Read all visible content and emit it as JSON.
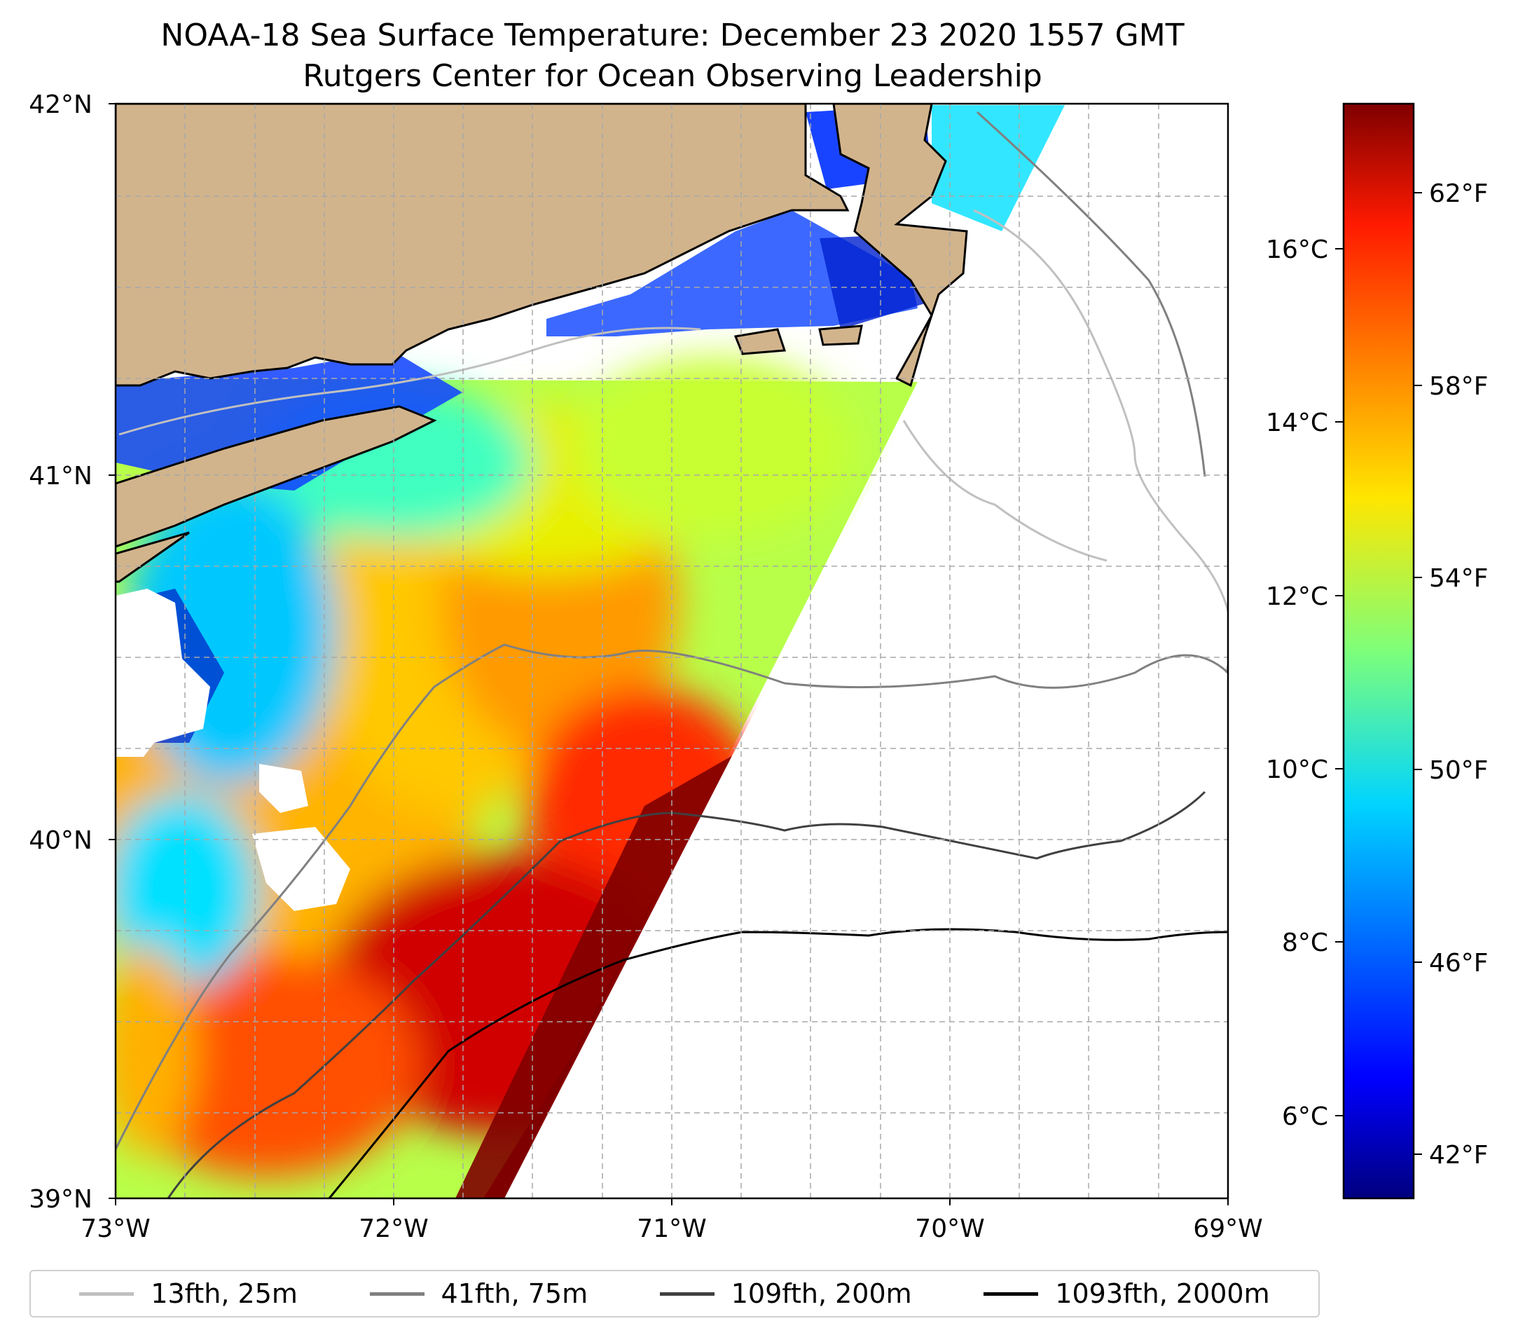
{
  "title": "NOAA-18 Sea Surface Temperature: December 23 2020 1557 GMT",
  "subtitle": "Rutgers Center for Ocean Observing Leadership",
  "map": {
    "lat_range": [
      39,
      42
    ],
    "lon_range": [
      -73,
      -69
    ],
    "lat_ticks": [
      "42°N",
      "41°N",
      "40°N",
      "39°N"
    ],
    "lon_ticks": [
      "73°W",
      "72°W",
      "71°W",
      "70°W",
      "69°W"
    ],
    "grid": "dashed gray",
    "land_color": "#d2b48c",
    "no_data_color": "#ffffff"
  },
  "colorbar": {
    "colormap": "jet",
    "celsius_labels": [
      "16°C",
      "14°C",
      "12°C",
      "10°C",
      "8°C",
      "6°C"
    ],
    "fahrenheit_labels": [
      "62°F",
      "58°F",
      "54°F",
      "50°F",
      "46°F",
      "42°F"
    ]
  },
  "legend": {
    "placement": "bottom",
    "items": [
      {
        "label": "13fth, 25m",
        "color": "#c0c0c0"
      },
      {
        "label": "41fth, 75m",
        "color": "#808080"
      },
      {
        "label": "109fth, 200m",
        "color": "#404040"
      },
      {
        "label": "1093fth, 2000m",
        "color": "#000000"
      }
    ]
  }
}
